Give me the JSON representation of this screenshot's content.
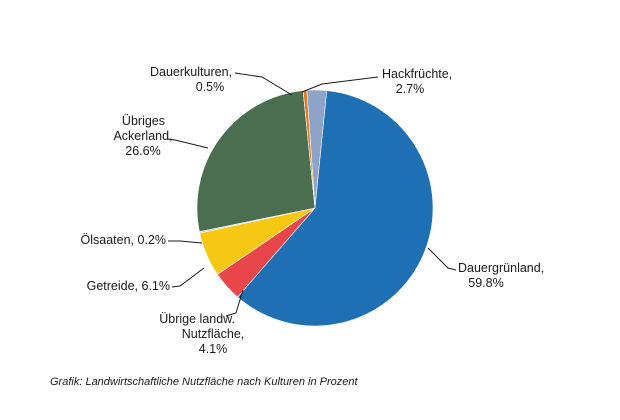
{
  "chart_data": {
    "type": "pie",
    "caption": "Grafik: Landwirtschaftliche Nutzfläche nach Kulturen in Prozent",
    "slices": [
      {
        "key": "hack",
        "lines": [
          "Hackfrüchte,",
          "2.7%"
        ],
        "value": 2.7,
        "color": "#8ea3c8"
      },
      {
        "key": "dgl",
        "lines": [
          "Dauergrünland,",
          "59.8%"
        ],
        "value": 59.8,
        "color": "#1f6fb5"
      },
      {
        "key": "ulnf",
        "lines": [
          "Übrige landw.",
          "Nutzfläche,",
          "4.1%"
        ],
        "value": 4.1,
        "color": "#e8464a"
      },
      {
        "key": "getr",
        "lines": [
          "Getreide, 6.1%"
        ],
        "value": 6.1,
        "color": "#f6c814"
      },
      {
        "key": "oel",
        "lines": [
          "Ölsaaten, 0.2%"
        ],
        "value": 0.2,
        "color": "#bcbcbc"
      },
      {
        "key": "uack",
        "lines": [
          "Übriges",
          "Ackerland,",
          "26.6%"
        ],
        "value": 26.6,
        "color": "#4a6e4f"
      },
      {
        "key": "dauer",
        "lines": [
          "Dauerkulturen,",
          "0.5%"
        ],
        "value": 0.5,
        "color": "#e07a1f"
      }
    ]
  }
}
